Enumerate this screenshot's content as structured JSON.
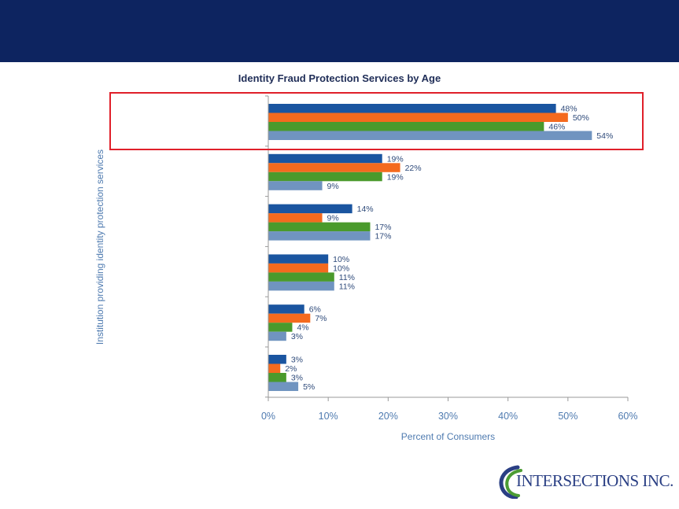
{
  "colors": {
    "header": "#0d2460",
    "highlight": "#e0202a",
    "axis": "#999999",
    "tick_text": "#4f7bb0",
    "title_text": "#1f2d57",
    "label_text": "#2e4a7a",
    "logo_blue": "#2a3f84",
    "logo_green": "#4c9c34"
  },
  "logo": {
    "text": "INTERSECTIONS INC.",
    "icon": "intersections-logo-icon"
  },
  "chart_data": {
    "type": "bar",
    "orientation": "horizontal",
    "title": "Identity Fraud Protection Services by Age",
    "xlabel": "Percent of Consumers",
    "ylabel": "Institution providing identity protection services",
    "xlim": [
      0,
      60
    ],
    "xticks": [
      "0%",
      "10%",
      "20%",
      "30%",
      "40%",
      "50%",
      "60%"
    ],
    "xtick_values": [
      0,
      10,
      20,
      30,
      40,
      50,
      60
    ],
    "categories": [
      "",
      "",
      "",
      "",
      "",
      ""
    ],
    "series": [
      {
        "color": "#1a55a0",
        "values": [
          48,
          19,
          14,
          10,
          6,
          3
        ],
        "labels": [
          "48%",
          "19%",
          "14%",
          "10%",
          "6%",
          "3%"
        ]
      },
      {
        "color": "#f46a1e",
        "values": [
          50,
          22,
          9,
          10,
          7,
          2
        ],
        "labels": [
          "50%",
          "22%",
          "9%",
          "10%",
          "7%",
          "2%"
        ]
      },
      {
        "color": "#4a9a2c",
        "values": [
          46,
          19,
          17,
          11,
          4,
          3
        ],
        "labels": [
          "46%",
          "19%",
          "17%",
          "11%",
          "4%",
          "3%"
        ]
      },
      {
        "color": "#7094c0",
        "values": [
          54,
          9,
          17,
          11,
          3,
          5
        ],
        "labels": [
          "54%",
          "9%",
          "17%",
          "11%",
          "3%",
          "5%"
        ]
      }
    ],
    "highlighted_group": 0,
    "grid": false,
    "legend": "none"
  }
}
